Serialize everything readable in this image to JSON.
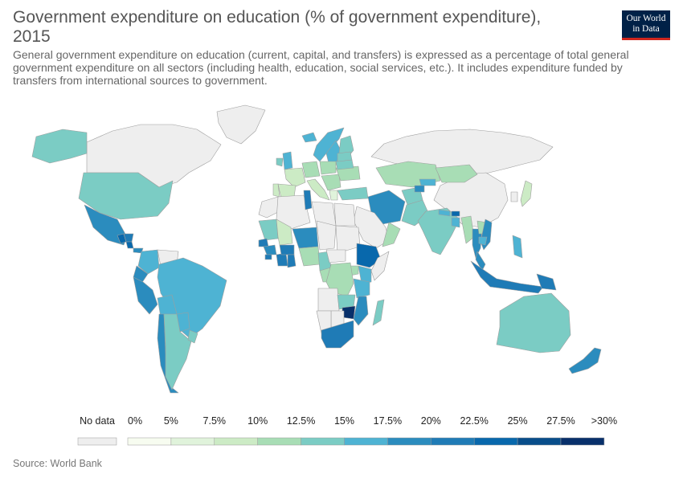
{
  "header": {
    "title_line1": "Government expenditure on education (% of government expenditure),",
    "title_line2": "2015",
    "subtitle_line1": "General government expenditure on education (current, capital, and transfers) is expressed as a percentage of total general",
    "subtitle_line2": "government expenditure on all sectors (including health, education, social services, etc.). It includes expenditure funded by",
    "subtitle_line3": "transfers from international sources to government."
  },
  "logo": {
    "line1": "Our World",
    "line2": "in Data"
  },
  "legend": {
    "no_data_label": "No data",
    "no_data_color": "#eeeeee",
    "bins": [
      {
        "label": "0%",
        "color": "#f7fcf0"
      },
      {
        "label": "5%",
        "color": "#e0f3db"
      },
      {
        "label": "7.5%",
        "color": "#ccebc5"
      },
      {
        "label": "10%",
        "color": "#a8ddb5"
      },
      {
        "label": "12.5%",
        "color": "#7bccc4"
      },
      {
        "label": "15%",
        "color": "#4eb3d3"
      },
      {
        "label": "17.5%",
        "color": "#2b8cbe"
      },
      {
        "label": "20%",
        "color": "#1f7bb6"
      },
      {
        "label": "22.5%",
        "color": "#0868ac"
      },
      {
        "label": "25%",
        "color": "#084d8a"
      },
      {
        "label": "27.5%",
        "color": "#08306b"
      }
    ],
    "end_label": ">30%"
  },
  "source": "Source: World Bank",
  "chart_data": {
    "type": "choropleth",
    "year": "2015",
    "unit": "% of government expenditure",
    "scale": [
      0,
      5,
      7.5,
      10,
      12.5,
      15,
      17.5,
      20,
      22.5,
      25,
      27.5,
      30
    ],
    "regions": [
      {
        "name": "Canada",
        "bin": -1
      },
      {
        "name": "Greenland",
        "bin": -1
      },
      {
        "name": "Russia",
        "bin": -1
      },
      {
        "name": "China",
        "bin": -1
      },
      {
        "name": "Alaska",
        "bin": 4
      },
      {
        "name": "United States",
        "bin": 4
      },
      {
        "name": "Mexico",
        "bin": 6
      },
      {
        "name": "Guatemala",
        "bin": 8
      },
      {
        "name": "Honduras",
        "bin": 7
      },
      {
        "name": "Costa Rica",
        "bin": 8
      },
      {
        "name": "Panama",
        "bin": 6
      },
      {
        "name": "Colombia",
        "bin": 5
      },
      {
        "name": "Venezuela",
        "bin": -1
      },
      {
        "name": "Ecuador",
        "bin": 6
      },
      {
        "name": "Peru",
        "bin": 6
      },
      {
        "name": "Brazil",
        "bin": 5
      },
      {
        "name": "Bolivia",
        "bin": 5
      },
      {
        "name": "Paraguay",
        "bin": 5
      },
      {
        "name": "Chile",
        "bin": 6
      },
      {
        "name": "Argentina",
        "bin": 4
      },
      {
        "name": "Uruguay",
        "bin": 4
      },
      {
        "name": "Iceland",
        "bin": 5
      },
      {
        "name": "Norway",
        "bin": 5
      },
      {
        "name": "Sweden",
        "bin": 5
      },
      {
        "name": "Finland",
        "bin": 4
      },
      {
        "name": "United Kingdom",
        "bin": 5
      },
      {
        "name": "Ireland",
        "bin": 4
      },
      {
        "name": "France",
        "bin": 2
      },
      {
        "name": "Spain",
        "bin": 2
      },
      {
        "name": "Portugal",
        "bin": 2
      },
      {
        "name": "Germany",
        "bin": 3
      },
      {
        "name": "Poland",
        "bin": 3
      },
      {
        "name": "Italy",
        "bin": 2
      },
      {
        "name": "Balkans",
        "bin": 3
      },
      {
        "name": "Greece",
        "bin": 1
      },
      {
        "name": "Ukraine",
        "bin": 3
      },
      {
        "name": "Belarus",
        "bin": 4
      },
      {
        "name": "Baltics",
        "bin": 4
      },
      {
        "name": "Kazakhstan",
        "bin": 3
      },
      {
        "name": "Mongolia",
        "bin": 3
      },
      {
        "name": "Turkey",
        "bin": 4
      },
      {
        "name": "Iran",
        "bin": 6
      },
      {
        "name": "Afghanistan",
        "bin": 4
      },
      {
        "name": "Pakistan",
        "bin": 4
      },
      {
        "name": "Kyrgyzstan",
        "bin": 5
      },
      {
        "name": "Tajikistan",
        "bin": 6
      },
      {
        "name": "Arabian Peninsula",
        "bin": -1
      },
      {
        "name": "Oman",
        "bin": 3
      },
      {
        "name": "India",
        "bin": 4
      },
      {
        "name": "Nepal",
        "bin": 5
      },
      {
        "name": "Bhutan",
        "bin": 8
      },
      {
        "name": "Bangladesh",
        "bin": 5
      },
      {
        "name": "Myanmar",
        "bin": 3
      },
      {
        "name": "Thailand",
        "bin": 6
      },
      {
        "name": "Laos",
        "bin": 3
      },
      {
        "name": "Vietnam",
        "bin": 6
      },
      {
        "name": "Cambodia",
        "bin": 5
      },
      {
        "name": "Malaysia",
        "bin": 6
      },
      {
        "name": "Indonesia",
        "bin": 7
      },
      {
        "name": "Philippines",
        "bin": 5
      },
      {
        "name": "Papua New Guinea",
        "bin": 7
      },
      {
        "name": "Japan",
        "bin": 2
      },
      {
        "name": "South Korea",
        "bin": -1
      },
      {
        "name": "Australia",
        "bin": 4
      },
      {
        "name": "New Zealand",
        "bin": 6
      },
      {
        "name": "Morocco",
        "bin": -1
      },
      {
        "name": "Algeria",
        "bin": -1
      },
      {
        "name": "Tunisia",
        "bin": 7
      },
      {
        "name": "Libya",
        "bin": -1
      },
      {
        "name": "Egypt",
        "bin": -1
      },
      {
        "name": "Mauritania",
        "bin": 4
      },
      {
        "name": "Mali",
        "bin": 2
      },
      {
        "name": "Niger",
        "bin": 6
      },
      {
        "name": "Chad",
        "bin": -1
      },
      {
        "name": "Sudan",
        "bin": -1
      },
      {
        "name": "Senegal",
        "bin": 7
      },
      {
        "name": "Guinea",
        "bin": 6
      },
      {
        "name": "Sierra Leone",
        "bin": 7
      },
      {
        "name": "Cote d'Ivoire",
        "bin": 7
      },
      {
        "name": "Burkina Faso",
        "bin": 7
      },
      {
        "name": "Ghana",
        "bin": 7
      },
      {
        "name": "Nigeria",
        "bin": 3
      },
      {
        "name": "Cameroon",
        "bin": 4
      },
      {
        "name": "Central African Republic",
        "bin": -1
      },
      {
        "name": "Ethiopia",
        "bin": 8
      },
      {
        "name": "Somalia",
        "bin": -1
      },
      {
        "name": "Kenya",
        "bin": 5
      },
      {
        "name": "Uganda",
        "bin": 3
      },
      {
        "name": "Congo",
        "bin": 3
      },
      {
        "name": "DR Congo",
        "bin": 3
      },
      {
        "name": "Tanzania",
        "bin": 5
      },
      {
        "name": "Angola",
        "bin": -1
      },
      {
        "name": "Zambia",
        "bin": 4
      },
      {
        "name": "Mozambique",
        "bin": 6
      },
      {
        "name": "Zimbabwe",
        "bin": 10
      },
      {
        "name": "Botswana",
        "bin": -1
      },
      {
        "name": "Namibia",
        "bin": -1
      },
      {
        "name": "South Africa",
        "bin": 7
      },
      {
        "name": "Madagascar",
        "bin": 4
      }
    ]
  }
}
